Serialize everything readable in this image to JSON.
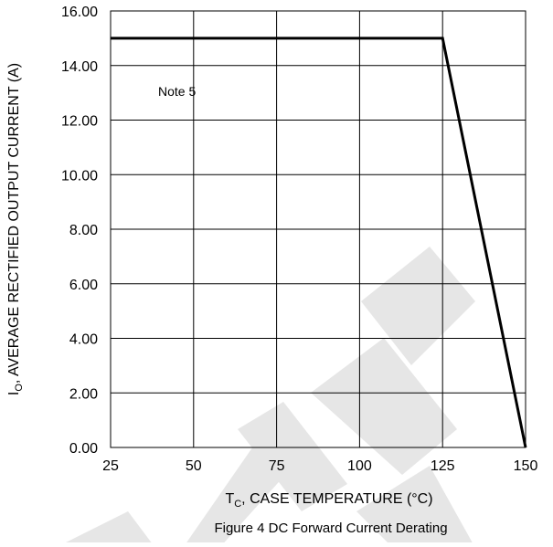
{
  "chart_data": {
    "type": "line",
    "xlabel_main": "T",
    "xlabel_sub": "C",
    "xlabel_rest": ", CASE TEMPERATURE (°C)",
    "ylabel_main": "I",
    "ylabel_sub": "O",
    "ylabel_rest": ", AVERAGE RECTIFIED OUTPUT CURRENT (A)",
    "caption": "Figure 4 DC Forward Current Derating",
    "annotation": "Note 5",
    "xlim": [
      25,
      150
    ],
    "ylim": [
      0,
      16
    ],
    "x_ticks": [
      25,
      50,
      75,
      100,
      125,
      150
    ],
    "x_tick_labels": [
      "25",
      "50",
      "75",
      "100",
      "125",
      "150"
    ],
    "y_ticks": [
      0,
      2,
      4,
      6,
      8,
      10,
      12,
      14,
      16
    ],
    "y_tick_labels": [
      "0.00",
      "2.00",
      "4.00",
      "6.00",
      "8.00",
      "10.00",
      "12.00",
      "14.00",
      "16.00"
    ],
    "grid": true,
    "series": [
      {
        "x": [
          25,
          125,
          150
        ],
        "y": [
          15,
          15,
          0
        ]
      }
    ],
    "line_color": "#000000",
    "grid_color": "#000000",
    "watermark_color": "#e6e6e6"
  }
}
